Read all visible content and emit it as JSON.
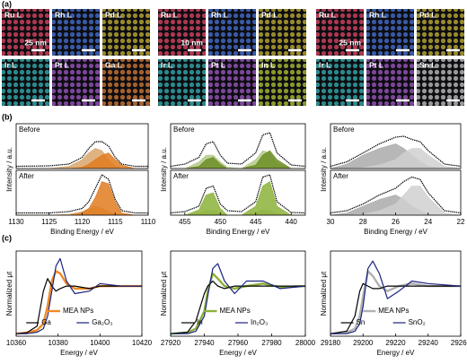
{
  "panel_labels": [
    "(a)",
    "(b)",
    "(c)"
  ],
  "maps": [
    {
      "scale_bar": "25 nm",
      "tiles": [
        {
          "label": "Ru L",
          "color": "#c8405a"
        },
        {
          "label": "Rh L",
          "color": "#4068c0"
        },
        {
          "label": "Pd L",
          "color": "#b0a030"
        },
        {
          "label": "Ir L",
          "color": "#30a0a0"
        },
        {
          "label": "Pt L",
          "color": "#9050b0"
        },
        {
          "label": "Ga L",
          "color": "#c07030"
        }
      ]
    },
    {
      "scale_bar": "10 nm",
      "tiles": [
        {
          "label": "Ru L",
          "color": "#c8405a"
        },
        {
          "label": "Rh L",
          "color": "#4068c0"
        },
        {
          "label": "Pd L",
          "color": "#b0a030"
        },
        {
          "label": "Ir L",
          "color": "#30a0a0"
        },
        {
          "label": "Pt L",
          "color": "#9050b0"
        },
        {
          "label": "In L",
          "color": "#a0b030"
        }
      ]
    },
    {
      "scale_bar": "25 nm",
      "tiles": [
        {
          "label": "Ru L",
          "color": "#c8405a"
        },
        {
          "label": "Rh L",
          "color": "#4068c0"
        },
        {
          "label": "Pd L",
          "color": "#b0a030"
        },
        {
          "label": "Ir L",
          "color": "#30a0a0"
        },
        {
          "label": "Pt L",
          "color": "#9050b0"
        },
        {
          "label": "Sn L",
          "color": "#b0b0b0"
        }
      ]
    }
  ],
  "chart_data": [
    {
      "type": "line",
      "annotation": "Before",
      "ylabel": "Intensity / a.u.",
      "xlim": [
        1130,
        1110
      ],
      "ylim": [
        0,
        1
      ],
      "x": [
        1130,
        1125,
        1122,
        1120,
        1119,
        1118,
        1117,
        1116,
        1115,
        1114,
        1112,
        1110
      ],
      "series": [
        {
          "color": "#d9a66b",
          "fill": true,
          "values": [
            0,
            0,
            0.05,
            0.2,
            0.35,
            0.45,
            0.4,
            0.2,
            0.05,
            0,
            0,
            0
          ]
        },
        {
          "color": "#e07b20",
          "fill": true,
          "values": [
            0,
            0,
            0,
            0.03,
            0.1,
            0.2,
            0.3,
            0.35,
            0.2,
            0.08,
            0,
            0
          ]
        },
        {
          "color": "#000000",
          "marker": true,
          "values": [
            0.05,
            0.06,
            0.1,
            0.25,
            0.45,
            0.6,
            0.6,
            0.5,
            0.25,
            0.1,
            0.05,
            0.05
          ]
        }
      ]
    },
    {
      "type": "line",
      "annotation": "After",
      "xlabel": "Binding Energy / eV",
      "xlim": [
        1130,
        1110
      ],
      "ylim": [
        0,
        1
      ],
      "xticks": [
        1130,
        1125,
        1120,
        1115,
        1110
      ],
      "x": [
        1130,
        1125,
        1122,
        1120,
        1119,
        1118,
        1117,
        1116,
        1115,
        1114,
        1112,
        1110
      ],
      "series": [
        {
          "color": "#d9a66b",
          "fill": true,
          "values": [
            0,
            0,
            0.02,
            0.08,
            0.15,
            0.2,
            0.15,
            0.08,
            0.02,
            0,
            0,
            0
          ]
        },
        {
          "color": "#e07b20",
          "fill": true,
          "values": [
            0,
            0,
            0,
            0.05,
            0.15,
            0.4,
            0.75,
            0.7,
            0.3,
            0.05,
            0,
            0
          ]
        },
        {
          "color": "#000000",
          "marker": true,
          "values": [
            0.05,
            0.05,
            0.08,
            0.15,
            0.3,
            0.6,
            0.9,
            0.8,
            0.35,
            0.1,
            0.05,
            0.05
          ]
        }
      ]
    },
    {
      "type": "line",
      "annotation": "Before",
      "ylabel": "Intensity / a.u.",
      "xlim": [
        457,
        438
      ],
      "ylim": [
        0,
        1
      ],
      "x": [
        457,
        455,
        453,
        452,
        451,
        450,
        449,
        447,
        445,
        444,
        443,
        442,
        440,
        438
      ],
      "series": [
        {
          "color": "#b5c98a",
          "fill": true,
          "values": [
            0,
            0,
            0.15,
            0.3,
            0.3,
            0.15,
            0.03,
            0,
            0.2,
            0.4,
            0.35,
            0.12,
            0,
            0
          ]
        },
        {
          "color": "#6b8e23",
          "fill": true,
          "values": [
            0,
            0,
            0.05,
            0.2,
            0.25,
            0.1,
            0,
            0,
            0.08,
            0.3,
            0.4,
            0.2,
            0,
            0
          ]
        },
        {
          "color": "#000000",
          "marker": true,
          "values": [
            0.05,
            0.1,
            0.25,
            0.55,
            0.6,
            0.3,
            0.12,
            0.1,
            0.35,
            0.75,
            0.8,
            0.35,
            0.08,
            0.05
          ]
        }
      ]
    },
    {
      "type": "line",
      "annotation": "After",
      "xlabel": "Binding Energy / eV",
      "xlim": [
        457,
        438
      ],
      "ylim": [
        0,
        1
      ],
      "xticks": [
        455,
        450,
        445,
        440
      ],
      "x": [
        457,
        455,
        453,
        452,
        451,
        450,
        449,
        447,
        445,
        444,
        443,
        442,
        440,
        438
      ],
      "series": [
        {
          "color": "#b5c98a",
          "fill": true,
          "values": [
            0,
            0,
            0.05,
            0.1,
            0.1,
            0.05,
            0,
            0,
            0.05,
            0.12,
            0.1,
            0.03,
            0,
            0
          ]
        },
        {
          "color": "#8cb13a",
          "fill": true,
          "values": [
            0,
            0,
            0.12,
            0.45,
            0.5,
            0.15,
            0,
            0,
            0.2,
            0.65,
            0.75,
            0.2,
            0,
            0
          ]
        },
        {
          "color": "#000000",
          "marker": true,
          "values": [
            0.05,
            0.08,
            0.2,
            0.6,
            0.65,
            0.25,
            0.1,
            0.08,
            0.3,
            0.85,
            0.9,
            0.3,
            0.06,
            0.05
          ]
        }
      ]
    },
    {
      "type": "line",
      "annotation": "Before",
      "ylabel": "Intensity / a.u.",
      "xlim": [
        30,
        22
      ],
      "ylim": [
        0,
        1
      ],
      "x": [
        30,
        29,
        28,
        27,
        26,
        25.5,
        25,
        24.5,
        24,
        23,
        22
      ],
      "series": [
        {
          "color": "#aaaaaa",
          "fill": true,
          "values": [
            0,
            0.1,
            0.3,
            0.45,
            0.55,
            0.45,
            0.3,
            0.15,
            0.05,
            0,
            0
          ]
        },
        {
          "color": "#d0d0d0",
          "fill": true,
          "values": [
            0,
            0,
            0.02,
            0.08,
            0.2,
            0.35,
            0.45,
            0.45,
            0.3,
            0.05,
            0
          ]
        },
        {
          "color": "#000000",
          "marker": true,
          "values": [
            0.05,
            0.15,
            0.35,
            0.55,
            0.7,
            0.72,
            0.65,
            0.6,
            0.4,
            0.1,
            0.05
          ]
        }
      ]
    },
    {
      "type": "line",
      "annotation": "After",
      "xlabel": "Binding Energy / eV",
      "xlim": [
        30,
        22
      ],
      "ylim": [
        0,
        1
      ],
      "xticks": [
        30,
        28,
        26,
        24,
        22
      ],
      "x": [
        30,
        29,
        28,
        27,
        26,
        25.5,
        25,
        24.5,
        24,
        23,
        22
      ],
      "series": [
        {
          "color": "#aaaaaa",
          "fill": true,
          "values": [
            0,
            0.05,
            0.2,
            0.35,
            0.45,
            0.35,
            0.2,
            0.1,
            0.02,
            0,
            0
          ]
        },
        {
          "color": "#d0d0d0",
          "fill": true,
          "values": [
            0,
            0,
            0.02,
            0.1,
            0.25,
            0.45,
            0.65,
            0.65,
            0.4,
            0.05,
            0
          ]
        },
        {
          "color": "#000000",
          "marker": true,
          "values": [
            0.05,
            0.1,
            0.25,
            0.45,
            0.6,
            0.75,
            0.85,
            0.8,
            0.5,
            0.1,
            0.05
          ]
        }
      ]
    },
    {
      "type": "line",
      "ylabel": "Normalized μt",
      "xlabel": "Energy / eV",
      "legend": "lower center",
      "xlim": [
        10360,
        10420
      ],
      "ylim": [
        0,
        1.7
      ],
      "xticks": [
        10360,
        10380,
        10400,
        10420
      ],
      "x": [
        10360,
        10365,
        10370,
        10373,
        10375,
        10377,
        10379,
        10381,
        10384,
        10388,
        10395,
        10400,
        10410,
        10420
      ],
      "series": [
        {
          "name": "MEA NPs",
          "color": "#f08a24",
          "width": 2.4,
          "values": [
            0.05,
            0.07,
            0.12,
            0.25,
            0.6,
            1.1,
            1.3,
            1.25,
            1.05,
            0.95,
            0.95,
            1.0,
            1.0,
            1.0
          ]
        },
        {
          "name": "Ga",
          "color": "#000000",
          "width": 1.2,
          "values": [
            0.05,
            0.07,
            0.2,
            0.9,
            1.15,
            1.0,
            0.9,
            0.95,
            1.0,
            1.0,
            0.95,
            1.0,
            1.0,
            1.0
          ]
        },
        {
          "name": "Ga₂O₃",
          "color": "#1a237e",
          "width": 1.2,
          "values": [
            0.05,
            0.05,
            0.08,
            0.15,
            0.4,
            0.9,
            1.4,
            1.55,
            1.1,
            0.85,
            0.9,
            1.05,
            1.0,
            1.0
          ]
        }
      ]
    },
    {
      "type": "line",
      "ylabel": "Normalized μt",
      "xlabel": "Energy / eV",
      "legend": "lower center",
      "xlim": [
        27920,
        28000
      ],
      "ylim": [
        0,
        1.7
      ],
      "xticks": [
        27920,
        27940,
        27960,
        27980,
        28000
      ],
      "x": [
        27920,
        27930,
        27935,
        27940,
        27942,
        27945,
        27948,
        27952,
        27958,
        27965,
        27975,
        27985,
        28000
      ],
      "series": [
        {
          "name": "MEA NPs",
          "color": "#8cb13a",
          "width": 2.4,
          "values": [
            0.05,
            0.07,
            0.15,
            0.5,
            0.9,
            1.25,
            1.15,
            1.0,
            0.95,
            1.0,
            1.05,
            0.98,
            1.0
          ]
        },
        {
          "name": "In",
          "color": "#000000",
          "width": 1.2,
          "values": [
            0.05,
            0.08,
            0.3,
            0.85,
            1.0,
            1.1,
            1.0,
            0.95,
            1.0,
            1.0,
            1.0,
            1.0,
            1.0
          ]
        },
        {
          "name": "In₂O₃",
          "color": "#1a237e",
          "width": 1.2,
          "values": [
            0.05,
            0.05,
            0.1,
            0.4,
            0.8,
            1.35,
            1.45,
            1.1,
            0.85,
            1.1,
            1.1,
            0.95,
            1.0
          ]
        }
      ]
    },
    {
      "type": "line",
      "ylabel": "Normalized μt",
      "xlabel": "Energy / eV",
      "legend": "lower center",
      "xlim": [
        29180,
        29260
      ],
      "ylim": [
        0,
        1.7
      ],
      "xticks": [
        29180,
        29200,
        29220,
        29240,
        29260
      ],
      "x": [
        29180,
        29190,
        29195,
        29198,
        29200,
        29203,
        29206,
        29210,
        29215,
        29222,
        29230,
        29240,
        29260
      ],
      "series": [
        {
          "name": "MEA NPs",
          "color": "#b0b0b0",
          "width": 2.4,
          "values": [
            0.05,
            0.07,
            0.15,
            0.4,
            0.8,
            1.3,
            1.2,
            1.0,
            0.9,
            1.0,
            1.05,
            1.0,
            1.0
          ]
        },
        {
          "name": "Sn",
          "color": "#000000",
          "width": 1.2,
          "values": [
            0.05,
            0.1,
            0.4,
            0.9,
            1.05,
            1.0,
            0.95,
            0.95,
            1.0,
            1.0,
            1.0,
            1.0,
            1.0
          ]
        },
        {
          "name": "SnO₂",
          "color": "#1a237e",
          "width": 1.2,
          "values": [
            0.05,
            0.05,
            0.1,
            0.25,
            0.6,
            1.35,
            1.5,
            1.25,
            0.75,
            0.9,
            1.1,
            1.05,
            1.0
          ]
        }
      ]
    }
  ]
}
